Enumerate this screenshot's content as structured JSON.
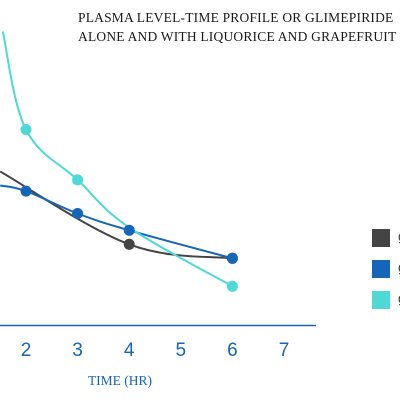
{
  "chart_data": {
    "type": "line",
    "title": "PLASMA LEVEL-TIME PROFILE OR GLIMEPIRIDE\nALONE AND WITH LIQUORICE AND GRAPEFRUIT",
    "xlabel": "TIME (HR)",
    "ylabel": "",
    "x_ticks": [
      2,
      3,
      4,
      5,
      6,
      7
    ],
    "xlim": [
      1.55,
      7.2
    ],
    "ylim": [
      0,
      1
    ],
    "grid": false,
    "legend_position": "right",
    "series": [
      {
        "name": "g",
        "color": "#444444",
        "x": [
          1.5,
          4,
          6
        ],
        "y": [
          0.55,
          0.29,
          0.24
        ],
        "markers": [
          false,
          true,
          true
        ]
      },
      {
        "name": "g",
        "color": "#1565b8",
        "x": [
          1.5,
          2,
          3,
          4,
          6
        ],
        "y": [
          0.5,
          0.48,
          0.4,
          0.34,
          0.24
        ],
        "markers": [
          false,
          true,
          true,
          true,
          true
        ]
      },
      {
        "name": "g",
        "color": "#4dd9d6",
        "x": [
          1.55,
          2,
          3,
          4,
          6
        ],
        "y": [
          1.05,
          0.7,
          0.52,
          0.35,
          0.14
        ],
        "markers": [
          false,
          true,
          true,
          false,
          true
        ]
      }
    ]
  }
}
